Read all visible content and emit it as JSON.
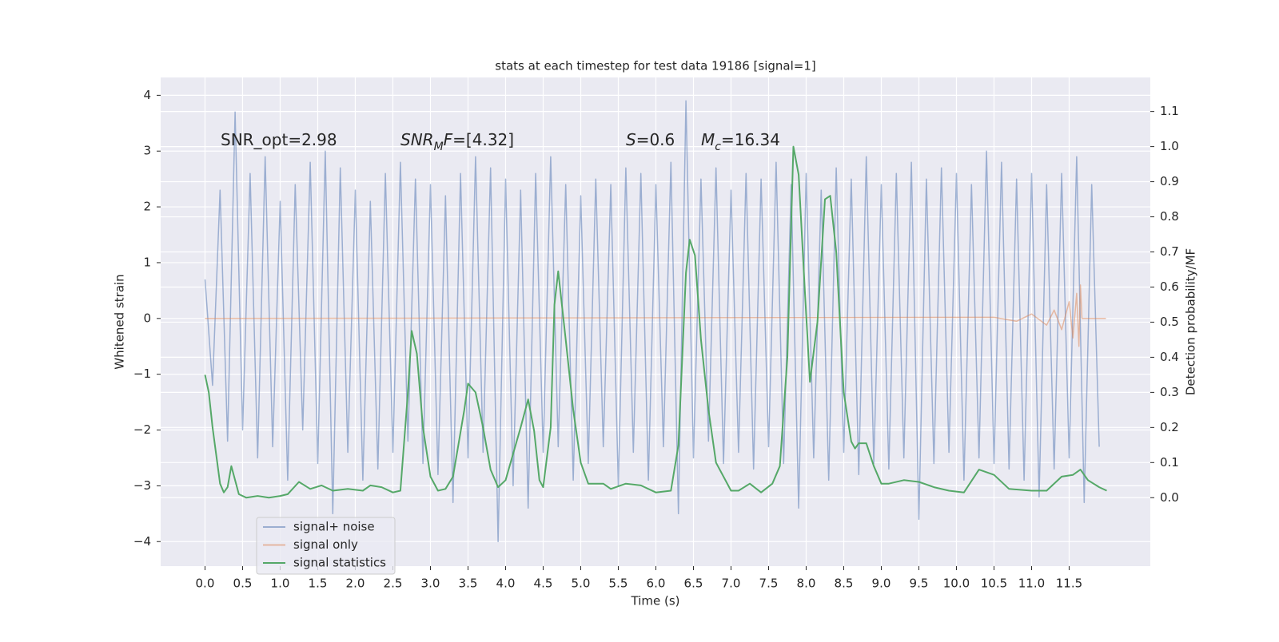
{
  "chart_data": {
    "type": "line",
    "title": "stats at each timestep for test data 19186 [signal=1]",
    "x_label": "Time (s)",
    "y_label": "Whitened strain",
    "y2_label": "Detection probability/MF",
    "annotations": [
      [
        {
          "text": "SNR_opt=2.98"
        }
      ],
      [
        {
          "text": "SNR",
          "italic": true
        },
        {
          "text": "M",
          "italic": true,
          "sub": true
        },
        {
          "text": "F",
          "italic": true
        },
        {
          "text": "=[4.32]"
        }
      ],
      [
        {
          "text": "S",
          "italic": true
        },
        {
          "text": "=0.6"
        }
      ],
      [
        {
          "text": "M",
          "italic": true
        },
        {
          "text": "c",
          "italic": true,
          "sub": true
        },
        {
          "text": "=16.34"
        }
      ]
    ],
    "xlim": [
      -0.59,
      12.58
    ],
    "ylim": [
      -4.44,
      4.32
    ],
    "y2lim": [
      -0.195,
      1.197
    ],
    "xticks": [
      {
        "value": 0,
        "label": "0.0"
      },
      0.5,
      {
        "value": 1,
        "label": "1.0"
      },
      1.5,
      {
        "value": 2,
        "label": "2.0"
      },
      2.5,
      {
        "value": 3,
        "label": "3.0"
      },
      3.5,
      {
        "value": 4,
        "label": "4.0"
      },
      4.5,
      {
        "value": 5,
        "label": "5.0"
      },
      5.5,
      {
        "value": 6,
        "label": "6.0"
      },
      6.5,
      {
        "value": 7,
        "label": "7.0"
      },
      7.5,
      {
        "value": 8,
        "label": "8.0"
      },
      8.5,
      {
        "value": 9,
        "label": "9.0"
      },
      9.5,
      {
        "value": 10,
        "label": "10.0"
      },
      10.5,
      {
        "value": 11,
        "label": "11.0"
      },
      11.5
    ],
    "yticks": [
      {
        "value": -4,
        "label": "−4"
      },
      {
        "value": -3,
        "label": "−3"
      },
      {
        "value": -2,
        "label": "−2"
      },
      {
        "value": -1,
        "label": "−1"
      },
      0,
      1,
      2,
      3,
      4
    ],
    "y2ticks": [
      {
        "value": 0,
        "label": "0.0"
      },
      0.1,
      0.2,
      0.3,
      0.4,
      0.5,
      0.6,
      0.7,
      0.8,
      0.9,
      {
        "value": 1,
        "label": "1.0"
      },
      1.1
    ],
    "grid": true,
    "legend": "lower left",
    "background": "#eaeaf2",
    "series": [
      {
        "name": "signal+ noise",
        "color": "#4c72b0",
        "alpha": 0.5,
        "x": [
          0,
          0.1,
          0.2,
          0.3,
          0.4,
          0.5,
          0.6,
          0.7,
          0.8,
          0.9,
          1,
          1.1,
          1.2,
          1.3,
          1.4,
          1.5,
          1.6,
          1.7,
          1.8,
          1.9,
          2,
          2.1,
          2.2,
          2.3,
          2.4,
          2.5,
          2.6,
          2.7,
          2.8,
          2.9,
          3,
          3.1,
          3.2,
          3.3,
          3.4,
          3.5,
          3.6,
          3.7,
          3.8,
          3.9,
          4,
          4.1,
          4.2,
          4.3,
          4.4,
          4.5,
          4.6,
          4.7,
          4.8,
          4.9,
          5,
          5.1,
          5.2,
          5.3,
          5.4,
          5.5,
          5.6,
          5.7,
          5.8,
          5.9,
          6,
          6.1,
          6.2,
          6.3,
          6.4,
          6.5,
          6.6,
          6.7,
          6.8,
          6.9,
          7,
          7.1,
          7.2,
          7.3,
          7.4,
          7.5,
          7.6,
          7.7,
          7.8,
          7.9,
          8,
          8.1,
          8.2,
          8.3,
          8.4,
          8.5,
          8.6,
          8.7,
          8.8,
          8.9,
          9,
          9.1,
          9.2,
          9.3,
          9.4,
          9.5,
          9.6,
          9.7,
          9.8,
          9.9,
          10,
          10.1,
          10.2,
          10.3,
          10.4,
          10.5,
          10.6,
          10.7,
          10.8,
          10.9,
          11,
          11.1,
          11.2,
          11.3,
          11.4,
          11.5,
          11.6,
          11.7,
          11.8,
          11.9
        ],
        "values": [
          0.7,
          -1.2,
          2.3,
          -2.2,
          3.7,
          -2.0,
          2.6,
          -2.5,
          2.9,
          -2.3,
          2.1,
          -2.9,
          2.4,
          -2.0,
          2.8,
          -2.6,
          3.0,
          -3.5,
          2.7,
          -2.4,
          2.3,
          -2.9,
          2.1,
          -2.7,
          2.6,
          -2.4,
          2.8,
          -2.2,
          2.5,
          -2.6,
          2.4,
          -2.8,
          2.2,
          -3.3,
          2.6,
          -2.5,
          2.9,
          -2.4,
          2.7,
          -4.0,
          2.5,
          -3.0,
          2.3,
          -3.4,
          2.6,
          -2.4,
          2.9,
          -2.3,
          2.4,
          -2.9,
          2.2,
          -2.6,
          2.5,
          -2.3,
          2.4,
          -3.0,
          2.7,
          -2.4,
          2.6,
          -2.9,
          2.4,
          -2.3,
          2.8,
          -3.5,
          3.9,
          -2.5,
          2.5,
          -2.2,
          2.7,
          -2.6,
          2.3,
          -2.4,
          2.6,
          -2.7,
          2.5,
          -2.3,
          2.8,
          -2.6,
          2.4,
          -3.4,
          2.6,
          -2.5,
          2.3,
          -2.9,
          2.7,
          -2.4,
          2.5,
          -2.8,
          2.9,
          -2.6,
          2.4,
          -2.7,
          2.6,
          -2.5,
          2.8,
          -3.6,
          2.5,
          -2.6,
          2.7,
          -2.4,
          2.6,
          -2.9,
          2.4,
          -2.5,
          3.0,
          -2.6,
          2.8,
          -2.7,
          2.5,
          -2.9,
          2.6,
          -3.2,
          2.4,
          -2.7,
          2.6,
          -2.5,
          2.9,
          -3.3,
          2.4,
          -2.3
        ]
      },
      {
        "name": "signal only",
        "color": "#dd8452",
        "alpha": 0.5,
        "x": [
          0,
          10.5,
          10.8,
          11.0,
          11.2,
          11.3,
          11.4,
          11.5,
          11.55,
          11.6,
          11.63,
          11.65,
          11.67,
          11.99
        ],
        "values": [
          0,
          0.02,
          -0.05,
          0.08,
          -0.12,
          0.15,
          -0.2,
          0.3,
          -0.35,
          0.45,
          -0.5,
          0.6,
          0,
          0
        ]
      },
      {
        "name": "signal statistics",
        "color": "#55a868",
        "alpha": 1,
        "axis": "y2",
        "x": [
          0,
          0.05,
          0.1,
          0.2,
          0.25,
          0.3,
          0.35,
          0.45,
          0.55,
          0.7,
          0.85,
          1.0,
          1.1,
          1.25,
          1.4,
          1.55,
          1.7,
          1.9,
          2.1,
          2.2,
          2.35,
          2.5,
          2.6,
          2.7,
          2.75,
          2.82,
          2.9,
          3.0,
          3.1,
          3.2,
          3.3,
          3.45,
          3.5,
          3.6,
          3.7,
          3.8,
          3.9,
          4.0,
          4.2,
          4.3,
          4.38,
          4.45,
          4.5,
          4.6,
          4.65,
          4.7,
          4.8,
          4.9,
          5.0,
          5.1,
          5.3,
          5.4,
          5.6,
          5.8,
          6.0,
          6.2,
          6.3,
          6.4,
          6.45,
          6.52,
          6.6,
          6.7,
          6.8,
          7.0,
          7.1,
          7.25,
          7.4,
          7.55,
          7.65,
          7.75,
          7.83,
          7.9,
          7.98,
          8.05,
          8.15,
          8.25,
          8.32,
          8.4,
          8.5,
          8.6,
          8.65,
          8.7,
          8.8,
          8.9,
          9.0,
          9.1,
          9.3,
          9.5,
          9.7,
          9.9,
          10.1,
          10.3,
          10.5,
          10.7,
          11.0,
          11.2,
          11.4,
          11.55,
          11.65,
          11.75,
          11.9,
          12.0
        ],
        "values": [
          0.35,
          0.3,
          0.2,
          0.04,
          0.015,
          0.03,
          0.09,
          0.01,
          0.0,
          0.005,
          0.0,
          0.005,
          0.01,
          0.045,
          0.025,
          0.035,
          0.02,
          0.025,
          0.02,
          0.035,
          0.03,
          0.015,
          0.02,
          0.3,
          0.475,
          0.41,
          0.2,
          0.06,
          0.02,
          0.025,
          0.06,
          0.25,
          0.325,
          0.3,
          0.2,
          0.08,
          0.03,
          0.05,
          0.2,
          0.28,
          0.19,
          0.05,
          0.03,
          0.2,
          0.55,
          0.645,
          0.45,
          0.25,
          0.1,
          0.04,
          0.04,
          0.025,
          0.04,
          0.035,
          0.015,
          0.02,
          0.15,
          0.64,
          0.735,
          0.69,
          0.45,
          0.25,
          0.1,
          0.02,
          0.02,
          0.04,
          0.015,
          0.04,
          0.09,
          0.4,
          1.0,
          0.92,
          0.6,
          0.33,
          0.5,
          0.85,
          0.86,
          0.7,
          0.3,
          0.16,
          0.14,
          0.155,
          0.155,
          0.09,
          0.04,
          0.04,
          0.05,
          0.045,
          0.03,
          0.02,
          0.015,
          0.08,
          0.065,
          0.025,
          0.02,
          0.02,
          0.06,
          0.065,
          0.08,
          0.05,
          0.03,
          0.02
        ]
      }
    ]
  }
}
